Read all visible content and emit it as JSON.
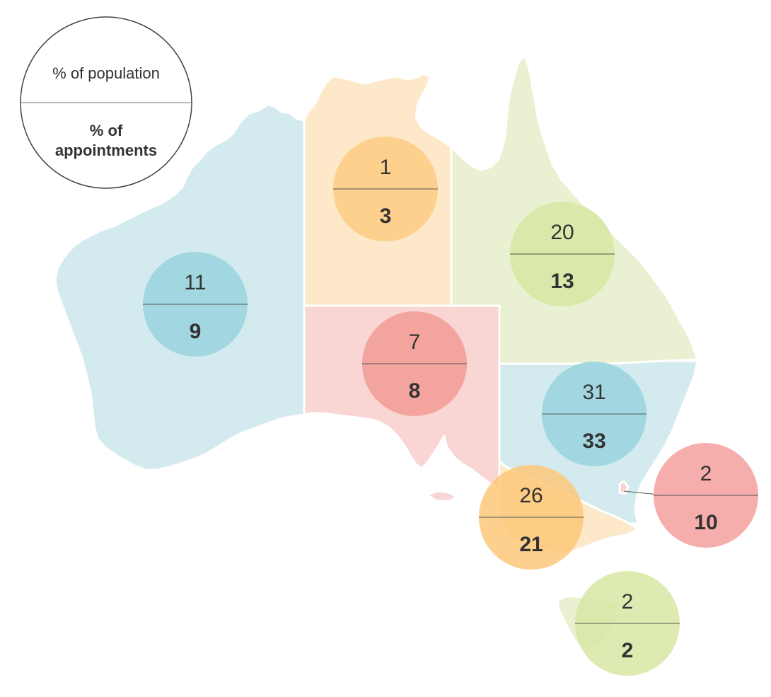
{
  "legend": {
    "top_label": "% of population",
    "bottom_label_line1": "% of",
    "bottom_label_line2": "appointments"
  },
  "colors": {
    "wa_fill": "#d3ebef",
    "nt_fill": "#fde9ca",
    "qld_fill": "#e9f1d2",
    "sa_fill": "#f9d5d4",
    "nsw_fill": "#d3ebef",
    "vic_fill": "#fde9ca",
    "tas_fill": "#e9f1d2",
    "blue_circle": "#8fd0db",
    "orange_circle": "#fdc87a",
    "green_circle": "#d7e7a4",
    "red_circle": "#f2908b"
  },
  "regions": [
    {
      "id": "wa",
      "population": "11",
      "appointments": "9",
      "circle_color": "#9fd6df"
    },
    {
      "id": "nt",
      "population": "1",
      "appointments": "3",
      "circle_color": "#fdcf8a"
    },
    {
      "id": "qld",
      "population": "20",
      "appointments": "13",
      "circle_color": "#d8e8a6"
    },
    {
      "id": "sa",
      "population": "7",
      "appointments": "8",
      "circle_color": "#f2a19b"
    },
    {
      "id": "nsw",
      "population": "31",
      "appointments": "33",
      "circle_color": "#9fd6df"
    },
    {
      "id": "act",
      "population": "2",
      "appointments": "10",
      "circle_color": "#f4aaa6"
    },
    {
      "id": "vic",
      "population": "26",
      "appointments": "21",
      "circle_color": "#fdc87a"
    },
    {
      "id": "tas",
      "population": "2",
      "appointments": "2",
      "circle_color": "#d7e7a4"
    }
  ]
}
